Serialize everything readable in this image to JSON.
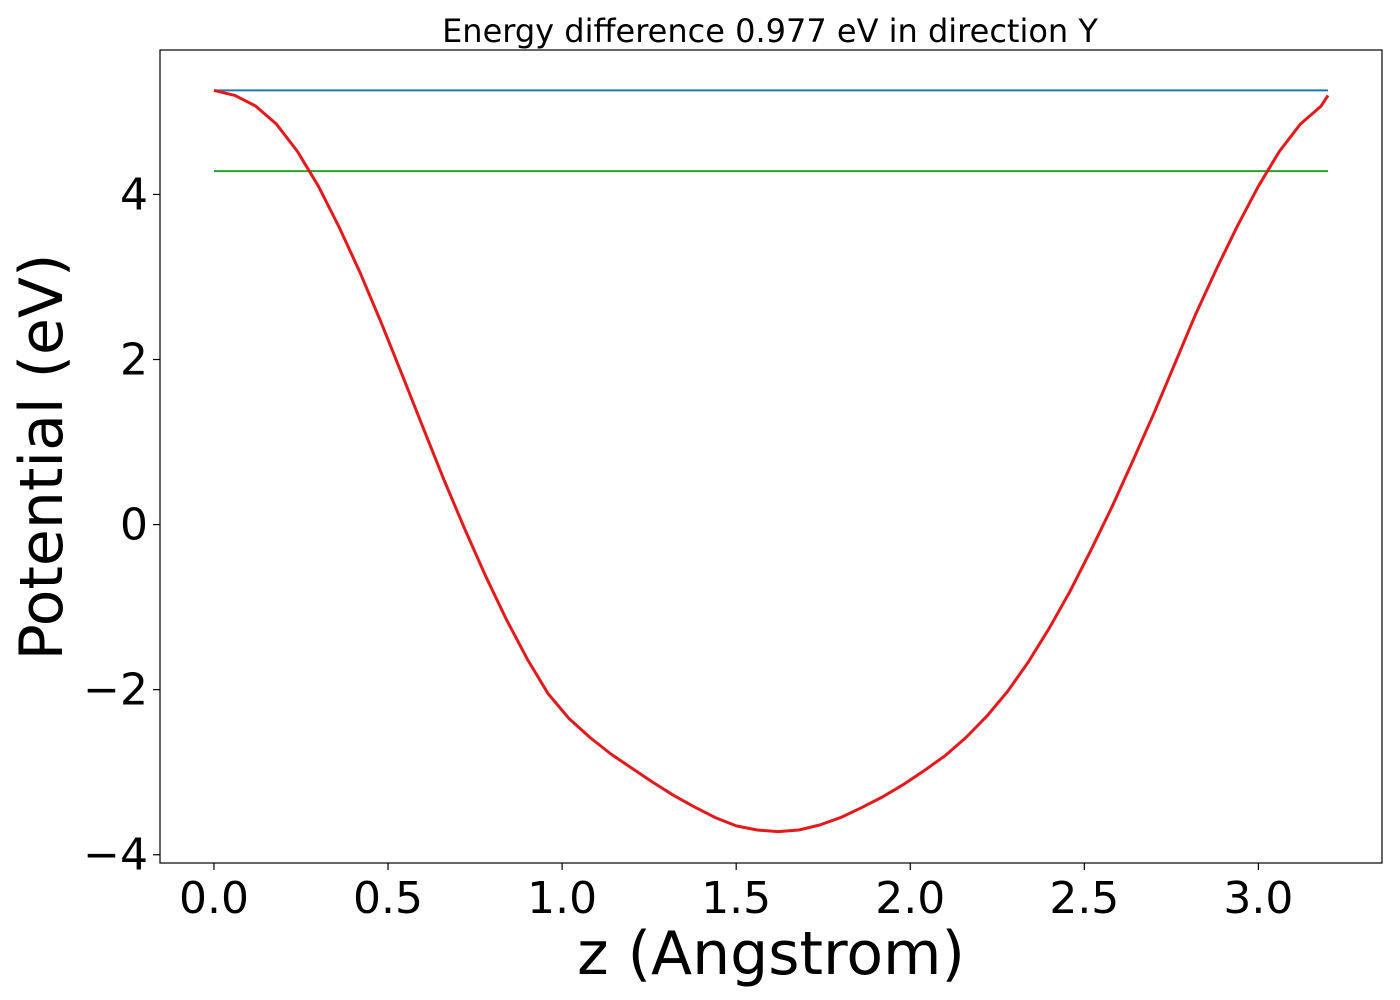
{
  "chart_data": {
    "type": "line",
    "title": "Energy difference 0.977 eV in direction Y",
    "xlabel": "z (Angstrom)",
    "ylabel": "Potential (eV)",
    "xlim": [
      -0.155,
      3.355
    ],
    "ylim": [
      -4.1,
      5.75
    ],
    "xticks": [
      0.0,
      0.5,
      1.0,
      1.5,
      2.0,
      2.5,
      3.0
    ],
    "xtick_labels": [
      "0.0",
      "0.5",
      "1.0",
      "1.5",
      "2.0",
      "2.5",
      "3.0"
    ],
    "yticks": [
      -4,
      -2,
      0,
      2,
      4
    ],
    "ytick_labels": [
      "−4",
      "−2",
      "0",
      "2",
      "4"
    ],
    "grid": false,
    "legend": "none",
    "series": [
      {
        "color": "#1f77b4",
        "x": [
          0.0,
          3.2
        ],
        "y": [
          5.26,
          5.26
        ]
      },
      {
        "color": "#2ca02c",
        "x": [
          0.0,
          3.2
        ],
        "y": [
          4.283,
          4.283
        ]
      },
      {
        "color": "#e31a1c",
        "x": [
          0.0,
          0.06,
          0.12,
          0.18,
          0.24,
          0.3,
          0.36,
          0.42,
          0.48,
          0.54,
          0.6,
          0.66,
          0.72,
          0.78,
          0.84,
          0.9,
          0.96,
          1.02,
          1.08,
          1.14,
          1.2,
          1.26,
          1.32,
          1.38,
          1.44,
          1.5,
          1.56,
          1.62,
          1.68,
          1.74,
          1.8,
          1.86,
          1.92,
          1.98,
          2.04,
          2.1,
          2.16,
          2.22,
          2.28,
          2.34,
          2.4,
          2.46,
          2.52,
          2.58,
          2.64,
          2.7,
          2.76,
          2.82,
          2.88,
          2.94,
          3.0,
          3.06,
          3.12,
          3.18,
          3.2
        ],
        "y": [
          5.26,
          5.2,
          5.07,
          4.85,
          4.52,
          4.1,
          3.6,
          3.05,
          2.45,
          1.82,
          1.18,
          0.55,
          -0.05,
          -0.62,
          -1.15,
          -1.63,
          -2.05,
          -2.35,
          -2.58,
          -2.78,
          -2.95,
          -3.12,
          -3.28,
          -3.42,
          -3.55,
          -3.65,
          -3.7,
          -3.72,
          -3.7,
          -3.64,
          -3.55,
          -3.43,
          -3.3,
          -3.15,
          -2.98,
          -2.8,
          -2.58,
          -2.32,
          -2.02,
          -1.66,
          -1.25,
          -0.8,
          -0.3,
          0.22,
          0.78,
          1.35,
          1.95,
          2.55,
          3.1,
          3.62,
          4.1,
          4.52,
          4.85,
          5.07,
          5.2
        ]
      }
    ]
  }
}
